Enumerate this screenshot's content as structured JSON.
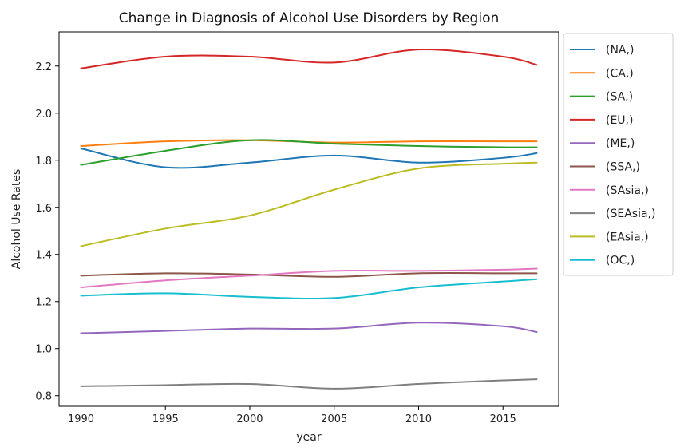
{
  "chart_data": {
    "type": "line",
    "title": "Change in Diagnosis of Alcohol Use Disorders by Region",
    "xlabel": "year",
    "ylabel": "Alcohol Use Rates",
    "xlim": [
      1988.7,
      2018.3
    ],
    "ylim": [
      0.755,
      2.345
    ],
    "xticks": [
      1990,
      1995,
      2000,
      2005,
      2010,
      2015
    ],
    "yticks": [
      0.8,
      1.0,
      1.2,
      1.4,
      1.6,
      1.8,
      2.0,
      2.2
    ],
    "ytick_labels": [
      "0.8",
      "1.0",
      "1.2",
      "1.4",
      "1.6",
      "1.8",
      "2.0",
      "2.2"
    ],
    "grid": false,
    "legend_position": "outside-right-top",
    "x": [
      1990,
      1995,
      2000,
      2005,
      2010,
      2015,
      2017
    ],
    "series": [
      {
        "name": "(NA,)",
        "color": "#1f77b4",
        "values": [
          1.85,
          1.77,
          1.79,
          1.82,
          1.79,
          1.81,
          1.83
        ]
      },
      {
        "name": "(CA,)",
        "color": "#ff7f0e",
        "values": [
          1.86,
          1.88,
          1.885,
          1.875,
          1.88,
          1.88,
          1.88
        ]
      },
      {
        "name": "(SA,)",
        "color": "#2ca02c",
        "values": [
          1.78,
          1.84,
          1.885,
          1.87,
          1.86,
          1.855,
          1.855
        ]
      },
      {
        "name": "(EU,)",
        "color": "#d62728",
        "values": [
          2.19,
          2.24,
          2.24,
          2.215,
          2.27,
          2.24,
          2.205
        ]
      },
      {
        "name": "(ME,)",
        "color": "#9467bd",
        "values": [
          1.065,
          1.075,
          1.085,
          1.085,
          1.11,
          1.095,
          1.07
        ]
      },
      {
        "name": "(SSA,)",
        "color": "#8c564b",
        "values": [
          1.31,
          1.32,
          1.315,
          1.305,
          1.32,
          1.32,
          1.32
        ]
      },
      {
        "name": "(SAsia,)",
        "color": "#e377c2",
        "values": [
          1.26,
          1.29,
          1.31,
          1.33,
          1.33,
          1.335,
          1.34
        ]
      },
      {
        "name": "(SEAsia,)",
        "color": "#7f7f7f",
        "values": [
          0.84,
          0.845,
          0.85,
          0.83,
          0.85,
          0.865,
          0.87
        ]
      },
      {
        "name": "(EAsia,)",
        "color": "#bcbd22",
        "values": [
          1.435,
          1.51,
          1.565,
          1.675,
          1.765,
          1.785,
          1.79
        ]
      },
      {
        "name": "(OC,)",
        "color": "#17becf",
        "values": [
          1.225,
          1.235,
          1.22,
          1.215,
          1.26,
          1.285,
          1.295
        ]
      }
    ]
  }
}
